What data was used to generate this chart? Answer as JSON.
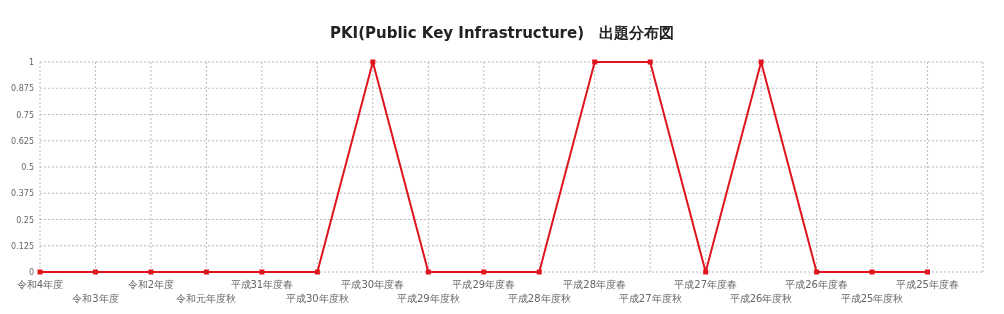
{
  "chart_data": {
    "type": "line",
    "title": "PKI(Public Key Infrastructure)　出題分布図",
    "categories": [
      "令和4年度",
      "令和3年度",
      "令和2年度",
      "令和元年度秋",
      "平成31年度春",
      "平成30年度秋",
      "平成30年度春",
      "平成29年度秋",
      "平成29年度春",
      "平成28年度秋",
      "平成28年度春",
      "平成27年度秋",
      "平成27年度春",
      "平成26年度秋",
      "平成26年度春",
      "平成25年度秋",
      "平成25年度春"
    ],
    "series": [
      {
        "color": "#e0141e",
        "values": [
          0,
          0,
          0,
          0,
          0,
          0,
          1,
          0,
          0,
          0,
          1,
          1,
          0,
          1,
          0,
          0,
          0
        ]
      }
    ],
    "ylim": [
      0,
      1
    ],
    "yticks": [
      0,
      0.125,
      0.25,
      0.375,
      0.5,
      0.625,
      0.75,
      0.875,
      1
    ],
    "grid": true,
    "marker": "square",
    "line_style": "solid"
  }
}
